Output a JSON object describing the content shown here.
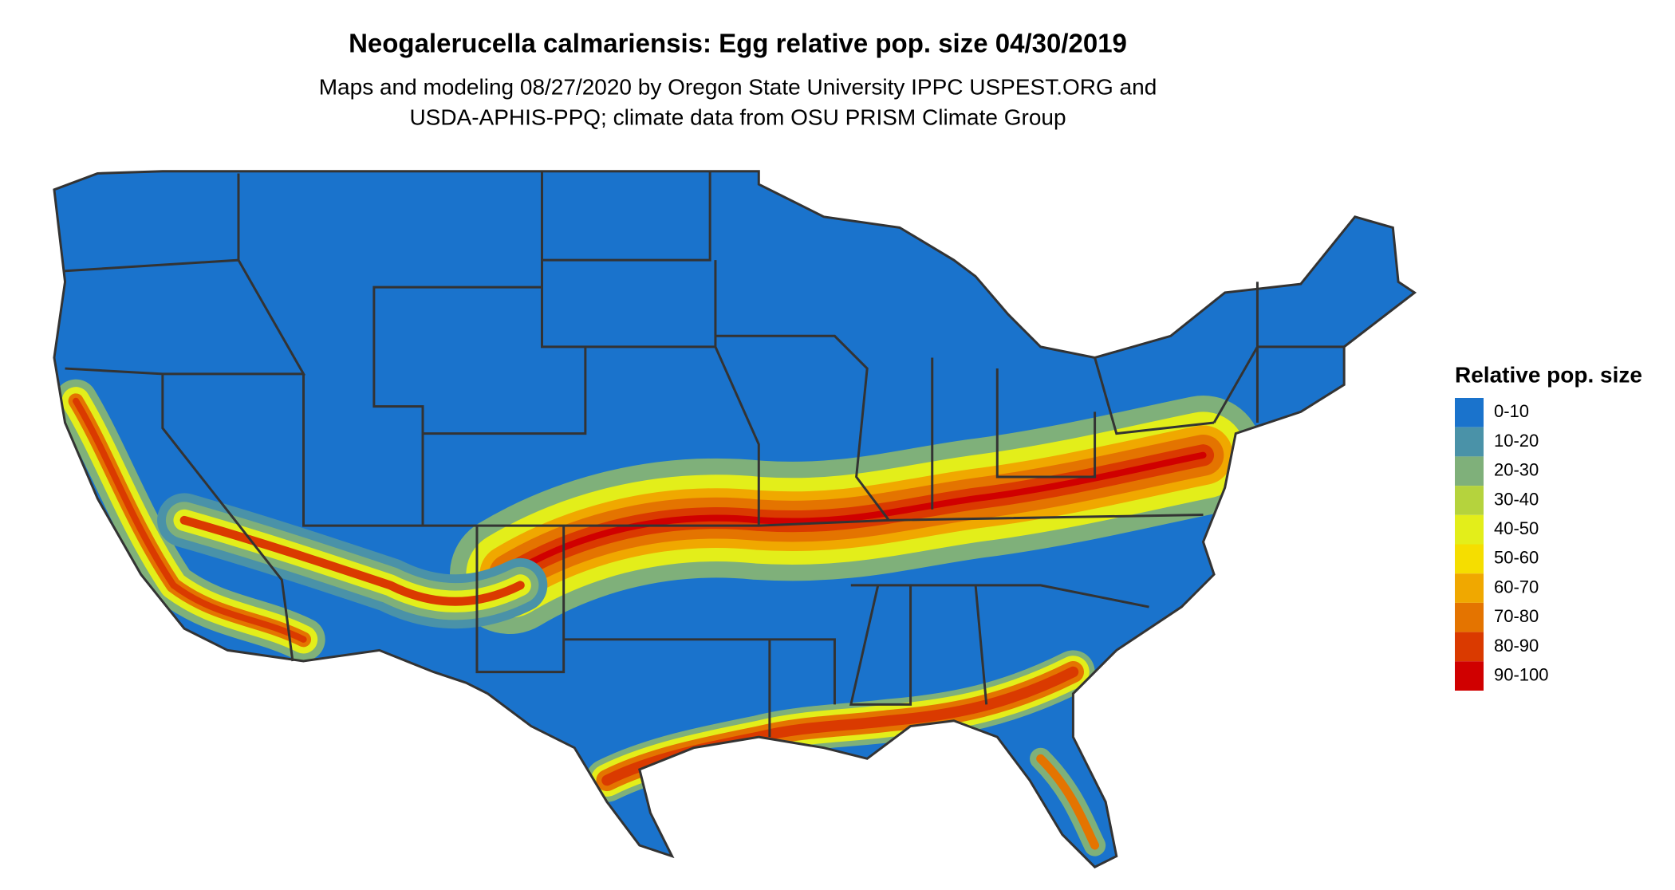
{
  "title": "Neogalerucella calmariensis: Egg relative pop. size 04/30/2019",
  "subtitle": [
    "Maps and modeling 08/27/2020 by Oregon State University IPPC USPEST.ORG and",
    "USDA-APHIS-PPQ; climate data from OSU PRISM Climate Group"
  ],
  "legend": {
    "title": "Relative pop. size",
    "items": [
      {
        "label": "0-10",
        "color": "#1a73cc"
      },
      {
        "label": "10-20",
        "color": "#4a92a8"
      },
      {
        "label": "20-30",
        "color": "#7fb07a"
      },
      {
        "label": "30-40",
        "color": "#b5d33d"
      },
      {
        "label": "40-50",
        "color": "#e3ee1a"
      },
      {
        "label": "50-60",
        "color": "#f5de00"
      },
      {
        "label": "60-70",
        "color": "#f0a800"
      },
      {
        "label": "70-80",
        "color": "#e47400"
      },
      {
        "label": "80-90",
        "color": "#da3a00"
      },
      {
        "label": "90-100",
        "color": "#d00000"
      }
    ]
  }
}
